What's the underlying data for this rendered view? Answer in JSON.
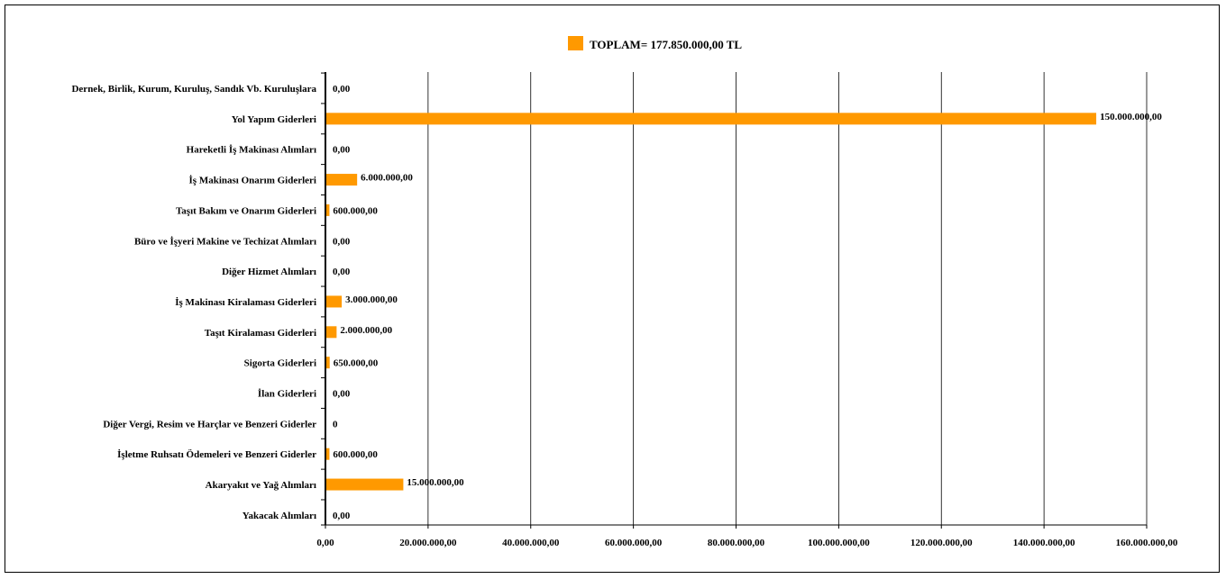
{
  "chart_data": {
    "type": "bar",
    "orientation": "horizontal",
    "legend": {
      "label": "TOPLAM= 177.850.000,00 TL",
      "position": "top-center"
    },
    "series": [
      {
        "name": "TOPLAM= 177.850.000,00 TL",
        "color": "#FF9900"
      }
    ],
    "categories": [
      "Dernek, Birlik, Kurum, Kuruluş, Sandık Vb. Kuruluşlara",
      "Yol Yapım Giderleri",
      "Hareketli İş Makinası Alımları",
      "İş Makinası Onarım Giderleri",
      "Taşıt Bakım ve Onarım Giderleri",
      "Büro ve İşyeri Makine ve Techizat Alımları",
      "Diğer Hizmet Alımları",
      "İş Makinası Kiralaması Giderleri",
      "Taşıt Kiralaması Giderleri",
      "Sigorta Giderleri",
      "İlan Giderleri",
      "Diğer Vergi, Resim ve Harçlar ve Benzeri Giderler",
      "İşletme Ruhsatı Ödemeleri ve Benzeri Giderler",
      "Akaryakıt ve Yağ  Alımları",
      "Yakacak  Alımları"
    ],
    "values": [
      0,
      150000000,
      0,
      6000000,
      600000,
      0,
      0,
      3000000,
      2000000,
      650000,
      0,
      0,
      600000,
      15000000,
      0
    ],
    "data_labels": [
      "0,00",
      "150.000.000,00",
      "0,00",
      "6.000.000,00",
      "600.000,00",
      "0,00",
      "0,00",
      "3.000.000,00",
      "2.000.000,00",
      "650.000,00",
      "0,00",
      "0",
      "600.000,00",
      "15.000.000,00",
      "0,00"
    ],
    "x_ticks": [
      0,
      20000000,
      40000000,
      60000000,
      80000000,
      100000000,
      120000000,
      140000000,
      160000000
    ],
    "x_tick_labels": [
      "0,00",
      "20.000.000,00",
      "40.000.000,00",
      "60.000.000,00",
      "80.000.000,00",
      "100.000.000,00",
      "120.000.000,00",
      "140.000.000,00",
      "160.000.000,00"
    ],
    "xlim": [
      0,
      160000000
    ],
    "grid": "vertical",
    "xlabel": "",
    "ylabel": "",
    "title": ""
  }
}
